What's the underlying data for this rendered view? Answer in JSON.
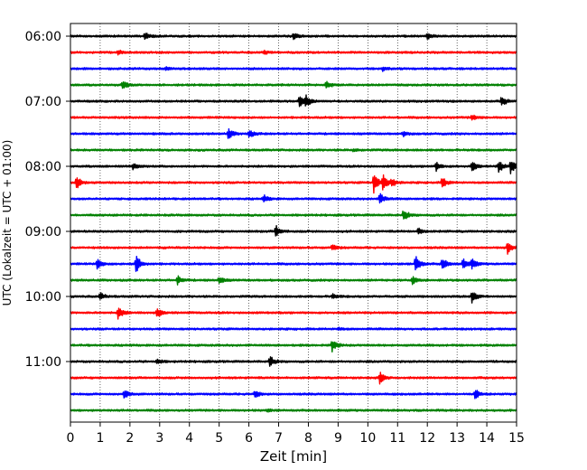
{
  "chart_data": {
    "type": "line",
    "title": "",
    "xlabel": "Zeit  [min]",
    "ylabel": "UTC (Lokalzeit = UTC + 01:00)",
    "xlim": [
      0,
      15
    ],
    "x_ticks": [
      0,
      1,
      2,
      3,
      4,
      5,
      6,
      7,
      8,
      9,
      10,
      11,
      12,
      13,
      14,
      15
    ],
    "x_tick_labels": [
      "0",
      "1",
      "2",
      "3",
      "4",
      "5",
      "6",
      "7",
      "8",
      "9",
      "10",
      "11",
      "12",
      "13",
      "14",
      "15"
    ],
    "y_tick_labels": [
      "06:00",
      "07:00",
      "08:00",
      "09:00",
      "10:00",
      "11:00"
    ],
    "grid": "vertical dotted",
    "trace_minutes": 15,
    "trace_colors": [
      "#000000",
      "#ff0000",
      "#0000ff",
      "#008000"
    ],
    "traces": [
      {
        "start": "06:00",
        "events": [
          {
            "t": 2.5,
            "amp": 0.3
          },
          {
            "t": 7.5,
            "amp": 0.25
          },
          {
            "t": 12.0,
            "amp": 0.25
          }
        ]
      },
      {
        "start": "06:15",
        "events": [
          {
            "t": 1.6,
            "amp": 0.2
          },
          {
            "t": 6.5,
            "amp": 0.15
          }
        ]
      },
      {
        "start": "06:30",
        "events": [
          {
            "t": 3.2,
            "amp": 0.15
          },
          {
            "t": 10.5,
            "amp": 0.15
          }
        ]
      },
      {
        "start": "06:45",
        "events": [
          {
            "t": 1.75,
            "amp": 0.45
          },
          {
            "t": 8.6,
            "amp": 0.35
          }
        ]
      },
      {
        "start": "07:00",
        "events": [
          {
            "t": 7.7,
            "amp": 0.55
          },
          {
            "t": 7.9,
            "amp": 0.5
          },
          {
            "t": 14.5,
            "amp": 0.45
          }
        ]
      },
      {
        "start": "07:15",
        "events": [
          {
            "t": 13.5,
            "amp": 0.25
          }
        ]
      },
      {
        "start": "07:30",
        "events": [
          {
            "t": 5.3,
            "amp": 0.45
          },
          {
            "t": 6.0,
            "amp": 0.35
          },
          {
            "t": 11.2,
            "amp": 0.2
          }
        ]
      },
      {
        "start": "07:45",
        "events": [
          {
            "t": 9.5,
            "amp": 0.1
          }
        ]
      },
      {
        "start": "08:00",
        "events": [
          {
            "t": 2.1,
            "amp": 0.25
          },
          {
            "t": 12.3,
            "amp": 0.35
          },
          {
            "t": 13.5,
            "amp": 0.4
          },
          {
            "t": 14.4,
            "amp": 0.5
          },
          {
            "t": 14.8,
            "amp": 0.6
          }
        ]
      },
      {
        "start": "08:15",
        "events": [
          {
            "t": 0.2,
            "amp": 0.55
          },
          {
            "t": 10.2,
            "amp": 0.85
          },
          {
            "t": 10.5,
            "amp": 0.75
          },
          {
            "t": 10.8,
            "amp": 0.3
          },
          {
            "t": 12.5,
            "amp": 0.45
          }
        ]
      },
      {
        "start": "08:30",
        "events": [
          {
            "t": 6.5,
            "amp": 0.3
          },
          {
            "t": 10.4,
            "amp": 0.5
          }
        ]
      },
      {
        "start": "08:45",
        "events": [
          {
            "t": 11.2,
            "amp": 0.55
          }
        ]
      },
      {
        "start": "09:00",
        "events": [
          {
            "t": 6.9,
            "amp": 0.5
          },
          {
            "t": 11.7,
            "amp": 0.3
          }
        ]
      },
      {
        "start": "09:15",
        "events": [
          {
            "t": 8.8,
            "amp": 0.25
          },
          {
            "t": 14.7,
            "amp": 0.5
          }
        ]
      },
      {
        "start": "09:30",
        "events": [
          {
            "t": 0.9,
            "amp": 0.4
          },
          {
            "t": 2.2,
            "amp": 0.9
          },
          {
            "t": 11.6,
            "amp": 0.75
          },
          {
            "t": 12.5,
            "amp": 0.55
          },
          {
            "t": 13.2,
            "amp": 0.45
          },
          {
            "t": 13.5,
            "amp": 0.4
          }
        ]
      },
      {
        "start": "09:45",
        "events": [
          {
            "t": 3.6,
            "amp": 0.35
          },
          {
            "t": 5.0,
            "amp": 0.3
          },
          {
            "t": 11.5,
            "amp": 0.35
          }
        ]
      },
      {
        "start": "10:00",
        "events": [
          {
            "t": 1.0,
            "amp": 0.3
          },
          {
            "t": 8.8,
            "amp": 0.2
          },
          {
            "t": 13.5,
            "amp": 0.5
          }
        ]
      },
      {
        "start": "10:15",
        "events": [
          {
            "t": 1.6,
            "amp": 0.6
          },
          {
            "t": 2.9,
            "amp": 0.45
          }
        ]
      },
      {
        "start": "10:30",
        "events": [
          {
            "t": 9.0,
            "amp": 0.1
          }
        ]
      },
      {
        "start": "10:45",
        "events": [
          {
            "t": 8.8,
            "amp": 0.5
          }
        ]
      },
      {
        "start": "11:00",
        "events": [
          {
            "t": 2.9,
            "amp": 0.2
          },
          {
            "t": 6.7,
            "amp": 0.55
          }
        ]
      },
      {
        "start": "11:15",
        "events": [
          {
            "t": 10.4,
            "amp": 0.5
          }
        ]
      },
      {
        "start": "11:30",
        "events": [
          {
            "t": 1.8,
            "amp": 0.4
          },
          {
            "t": 6.2,
            "amp": 0.3
          },
          {
            "t": 13.6,
            "amp": 0.45
          }
        ]
      },
      {
        "start": "11:45",
        "events": [
          {
            "t": 6.6,
            "amp": 0.1
          }
        ]
      }
    ]
  }
}
